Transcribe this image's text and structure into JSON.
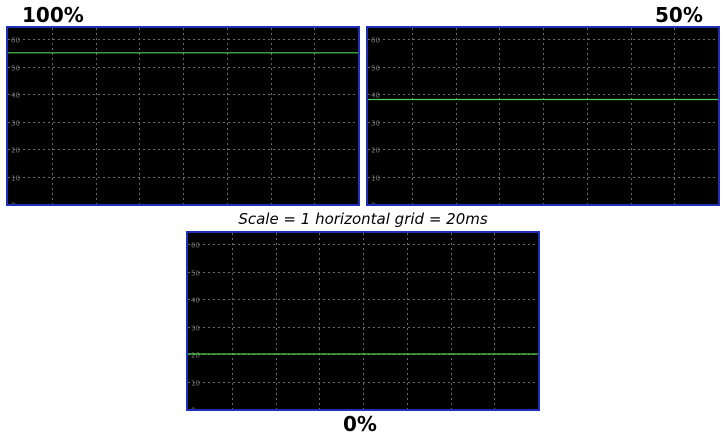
{
  "caption": "Scale = 1 horizontal grid = 20ms",
  "trace_color": "#4fd24f",
  "grid_color": "#6a6a6a",
  "frame_color": "#1f2fb8",
  "chart_data": [
    {
      "type": "line",
      "title": "100%",
      "y_tick_labels": [
        "60",
        "50",
        "40",
        "30",
        "20",
        "10",
        "0"
      ],
      "ylim": [
        0,
        64
      ],
      "xlim": [
        0,
        160
      ],
      "grid": true,
      "series": [
        {
          "x": [
            0,
            160
          ],
          "values": [
            55,
            55
          ]
        }
      ]
    },
    {
      "type": "line",
      "title": "50%",
      "y_tick_labels": [
        "60",
        "50",
        "40",
        "30",
        "20",
        "10",
        "0"
      ],
      "ylim": [
        0,
        64
      ],
      "xlim": [
        0,
        160
      ],
      "grid": true,
      "series": [
        {
          "x": [
            0,
            160
          ],
          "values": [
            38,
            38
          ]
        }
      ]
    },
    {
      "type": "line",
      "title": "0%",
      "y_tick_labels": [
        "60",
        "50",
        "40",
        "30",
        "20",
        "10",
        "0"
      ],
      "ylim": [
        0,
        64
      ],
      "xlim": [
        0,
        160
      ],
      "grid": true,
      "series": [
        {
          "x": [
            0,
            160
          ],
          "values": [
            20,
            20
          ]
        }
      ]
    }
  ]
}
